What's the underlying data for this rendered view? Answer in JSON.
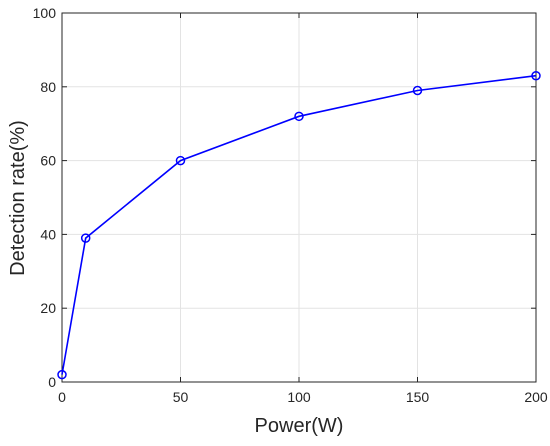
{
  "chart_data": {
    "type": "line",
    "title": "",
    "xlabel": "Power(W)",
    "ylabel": "Detection rate(%)",
    "xlim": [
      0,
      200
    ],
    "ylim": [
      0,
      100
    ],
    "x_ticks": [
      0,
      50,
      100,
      150,
      200
    ],
    "y_ticks": [
      0,
      20,
      40,
      60,
      80,
      100
    ],
    "grid": true,
    "series": [
      {
        "x": [
          0,
          10,
          50,
          100,
          150,
          200
        ],
        "y": [
          2,
          39,
          60,
          72,
          79,
          83
        ],
        "color": "#0000ff",
        "marker": "circle"
      }
    ]
  }
}
